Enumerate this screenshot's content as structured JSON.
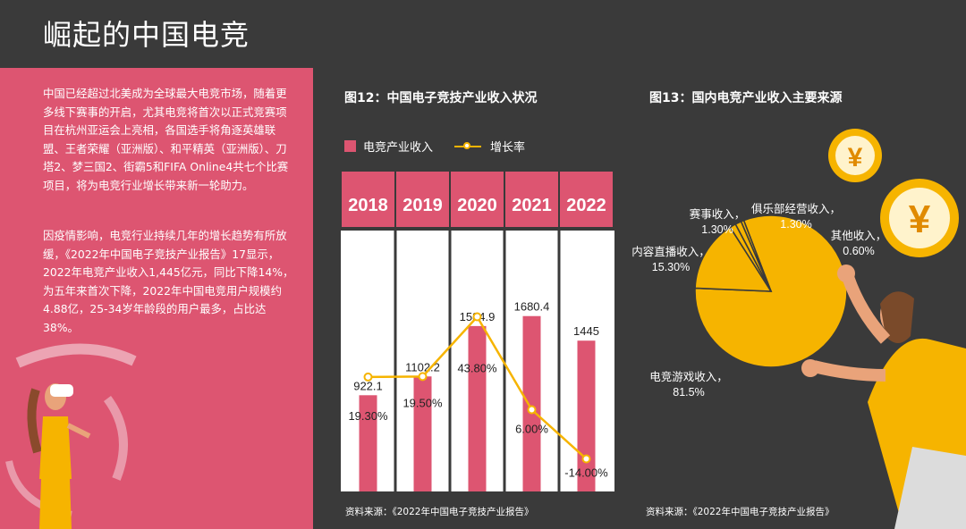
{
  "page_title": "崛起的中国电竞",
  "paragraphs": [
    "中国已经超过北美成为全球最大电竞市场，随着更多线下赛事的开启，尤其电竞将首次以正式竞赛项目在杭州亚运会上亮相，各国选手将角逐英雄联盟、王者荣耀（亚洲版）、和平精英（亚洲版）、刀塔2、梦三国2、街霸5和FIFA Online4共七个比赛项目，将为电竞行业增长带来新一轮助力。",
    "因疫情影响，电竞行业持续几年的增长趋势有所放缓，《2022年中国电子竞技产业报告》17显示，2022年电竞产业收入1,445亿元，同比下降14%，为五年来首次下降，2022年中国电竞用户规模约4.88亿，25-34岁年龄段的用户最多，占比达38%。"
  ],
  "fig12": {
    "title": "图12：中国电子竞技产业收入状况",
    "legend_revenue": "电竞产业收入",
    "legend_growth": "增长率",
    "source": "资料来源：《2022年中国电子竞技产业报告》"
  },
  "fig13": {
    "title": "图13：国内电竞产业收入主要来源",
    "source": "资料来源：《2022年中国电子竞技产业报告》",
    "currency_symbol": "¥"
  },
  "colors": {
    "background": "#3a3a3a",
    "pink": "#dd5571",
    "yellow": "#f6b400"
  },
  "chart_data": [
    {
      "type": "bar",
      "title": "图12：中国电子竞技产业收入状况",
      "categories": [
        "2018",
        "2019",
        "2020",
        "2021",
        "2022"
      ],
      "series": [
        {
          "name": "电竞产业收入",
          "type": "bar",
          "values": [
            922.1,
            1102.2,
            1584.9,
            1680.4,
            1445
          ],
          "labels": [
            "922.1",
            "1102.2",
            "1584.9",
            "1680.4",
            "1445"
          ]
        },
        {
          "name": "增长率",
          "type": "line",
          "values": [
            19.3,
            19.5,
            43.8,
            6.0,
            -14.0
          ],
          "labels": [
            "19.30%",
            "19.50%",
            "43.80%",
            "6.00%",
            "-14.00%"
          ]
        }
      ]
    },
    {
      "type": "pie",
      "title": "图13：国内电竞产业收入主要来源",
      "slices": [
        {
          "name": "电竞游戏收入",
          "value": 81.5,
          "label": "81.5%"
        },
        {
          "name": "内容直播收入",
          "value": 15.3,
          "label": "15.30%"
        },
        {
          "name": "赛事收入",
          "value": 1.3,
          "label": "1.30%"
        },
        {
          "name": "俱乐部经营收入",
          "value": 1.3,
          "label": "1.30%"
        },
        {
          "name": "其他收入",
          "value": 0.6,
          "label": "0.60%"
        }
      ]
    }
  ]
}
